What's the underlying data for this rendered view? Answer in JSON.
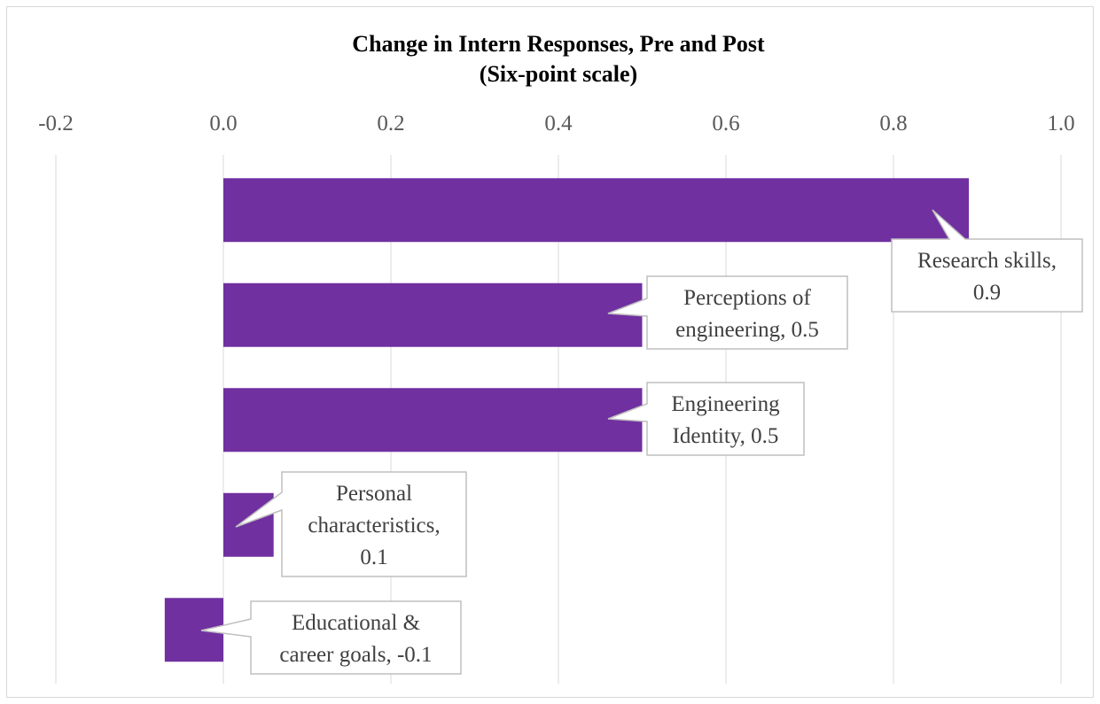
{
  "chart_data": {
    "type": "bar",
    "orientation": "horizontal",
    "title": "Change in Intern Responses, Pre and Post",
    "subtitle": "(Six-point scale)",
    "xlabel": "",
    "ylabel": "",
    "xlim": [
      -0.2,
      1.0
    ],
    "x_ticks": [
      -0.2,
      0.0,
      0.2,
      0.4,
      0.6,
      0.8,
      1.0
    ],
    "x_tick_labels": [
      "-0.2",
      "0.0",
      "0.2",
      "0.4",
      "0.6",
      "0.8",
      "1.0"
    ],
    "x_axis_position": "top",
    "grid": true,
    "legend": "none",
    "bar_color": "#7030a0",
    "categories": [
      "Research skills",
      "Perceptions of engineering",
      "Engineering Identity",
      "Personal characteristics",
      "Educational & career goals"
    ],
    "values": [
      0.89,
      0.5,
      0.5,
      0.06,
      -0.07
    ],
    "data_labels": [
      [
        "Research skills,",
        "0.9"
      ],
      [
        "Perceptions of",
        "engineering, 0.5"
      ],
      [
        "Engineering",
        "Identity, 0.5"
      ],
      [
        "Personal",
        "characteristics,",
        "0.1"
      ],
      [
        "Educational &",
        "career goals, -0.1"
      ]
    ]
  }
}
